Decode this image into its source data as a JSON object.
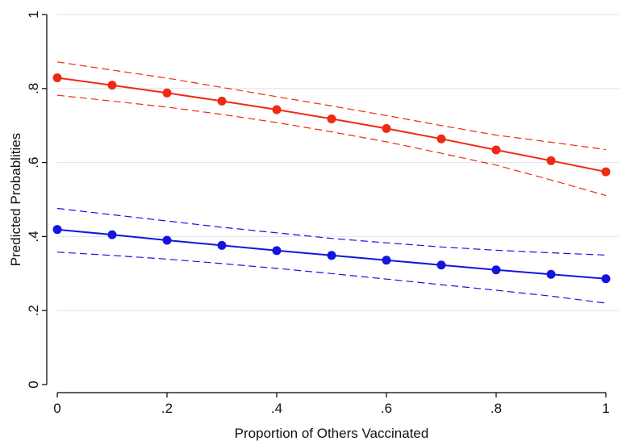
{
  "chart_data": {
    "type": "line",
    "title": "",
    "xlabel": "Proportion of Others Vaccinated",
    "ylabel": "Predicted Probablities",
    "xlim": [
      0,
      1
    ],
    "ylim": [
      0,
      1
    ],
    "xticks": [
      0,
      0.2,
      0.4,
      0.6,
      0.8,
      1
    ],
    "xtick_labels": [
      "0",
      ".2",
      ".4",
      ".6",
      ".8",
      "1"
    ],
    "yticks": [
      0,
      0.2,
      0.4,
      0.6,
      0.8,
      1
    ],
    "ytick_labels": [
      "0",
      ".2",
      ".4",
      ".6",
      ".8",
      "1"
    ],
    "grid": true,
    "x": [
      0,
      0.1,
      0.2,
      0.3,
      0.4,
      0.5,
      0.6,
      0.7,
      0.8,
      0.9,
      1.0
    ],
    "series": [
      {
        "name": "red series",
        "color": "#ee2a14",
        "values": [
          0.829,
          0.809,
          0.788,
          0.766,
          0.743,
          0.718,
          0.692,
          0.664,
          0.634,
          0.605,
          0.575
        ],
        "ci_upper": [
          0.872,
          0.85,
          0.828,
          0.803,
          0.778,
          0.753,
          0.727,
          0.7,
          0.674,
          0.655,
          0.635
        ],
        "ci_lower": [
          0.782,
          0.766,
          0.75,
          0.73,
          0.708,
          0.683,
          0.656,
          0.625,
          0.593,
          0.553,
          0.511
        ]
      },
      {
        "name": "blue series",
        "color": "#1414e0",
        "values": [
          0.419,
          0.405,
          0.39,
          0.376,
          0.362,
          0.349,
          0.336,
          0.323,
          0.31,
          0.298,
          0.286
        ],
        "ci_upper": [
          0.476,
          0.459,
          0.442,
          0.425,
          0.41,
          0.395,
          0.383,
          0.372,
          0.363,
          0.356,
          0.35
        ],
        "ci_lower": [
          0.358,
          0.349,
          0.339,
          0.327,
          0.314,
          0.3,
          0.285,
          0.27,
          0.255,
          0.239,
          0.22
        ]
      }
    ]
  }
}
